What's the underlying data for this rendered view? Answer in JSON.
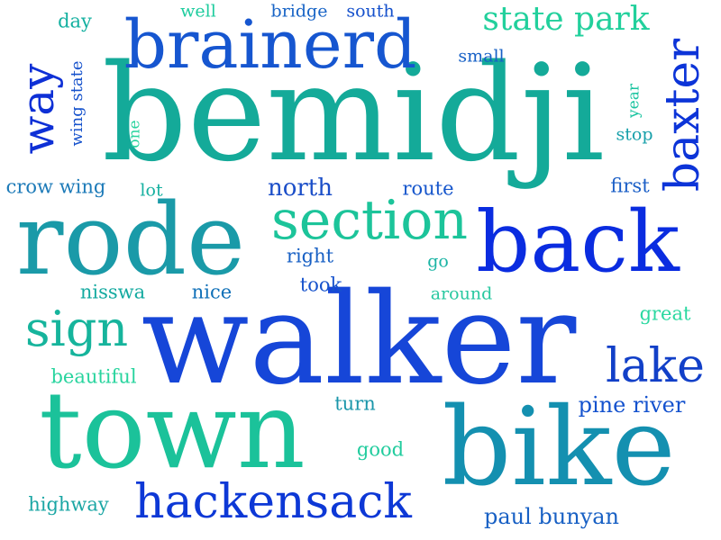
{
  "words": [
    {
      "text": "bemidji",
      "color": "#14aa99"
    },
    {
      "text": "walker",
      "color": "#1646d8"
    },
    {
      "text": "town",
      "color": "#1bc29a"
    },
    {
      "text": "bike",
      "color": "#1490b0"
    },
    {
      "text": "rode",
      "color": "#1a9aa8"
    },
    {
      "text": "back",
      "color": "#0a2ce0"
    },
    {
      "text": "brainerd",
      "color": "#1656d0"
    },
    {
      "text": "section",
      "color": "#1cc49a"
    },
    {
      "text": "hackensack",
      "color": "#0d38d6"
    },
    {
      "text": "baxter",
      "color": "#0c34d8"
    },
    {
      "text": "sign",
      "color": "#16b49c"
    },
    {
      "text": "lake",
      "color": "#1240c8"
    },
    {
      "text": "state park",
      "color": "#22d09c"
    },
    {
      "text": "way",
      "color": "#0e30d6"
    },
    {
      "text": "paul bunyan",
      "color": "#1860c4"
    },
    {
      "text": "pine river",
      "color": "#1452ce"
    },
    {
      "text": "north",
      "color": "#1b4ec8"
    },
    {
      "text": "crow wing",
      "color": "#1c7ab8"
    },
    {
      "text": "right",
      "color": "#1860c4"
    },
    {
      "text": "took",
      "color": "#1652cc"
    },
    {
      "text": "nisswa",
      "color": "#14aaa0"
    },
    {
      "text": "nice",
      "color": "#1070b8"
    },
    {
      "text": "route",
      "color": "#1656cc"
    },
    {
      "text": "first",
      "color": "#1a5ec6"
    },
    {
      "text": "great",
      "color": "#2ad8a0"
    },
    {
      "text": "beautiful",
      "color": "#28d49e"
    },
    {
      "text": "turn",
      "color": "#1a96aa"
    },
    {
      "text": "good",
      "color": "#22cc9e"
    },
    {
      "text": "highway",
      "color": "#1aa6a4"
    },
    {
      "text": "small",
      "color": "#1660c6"
    },
    {
      "text": "day",
      "color": "#14b0a0"
    },
    {
      "text": "well",
      "color": "#1ecc9e"
    },
    {
      "text": "bridge",
      "color": "#1864c6"
    },
    {
      "text": "south",
      "color": "#1450cc"
    },
    {
      "text": "lot",
      "color": "#16b0a0"
    },
    {
      "text": "go",
      "color": "#1ab4a4"
    },
    {
      "text": "around",
      "color": "#28c8a0"
    },
    {
      "text": "stop",
      "color": "#18a0aa"
    },
    {
      "text": "wing state",
      "color": "#1652cc"
    },
    {
      "text": "one",
      "color": "#28d49e"
    },
    {
      "text": "year",
      "color": "#1ac4a0"
    }
  ]
}
